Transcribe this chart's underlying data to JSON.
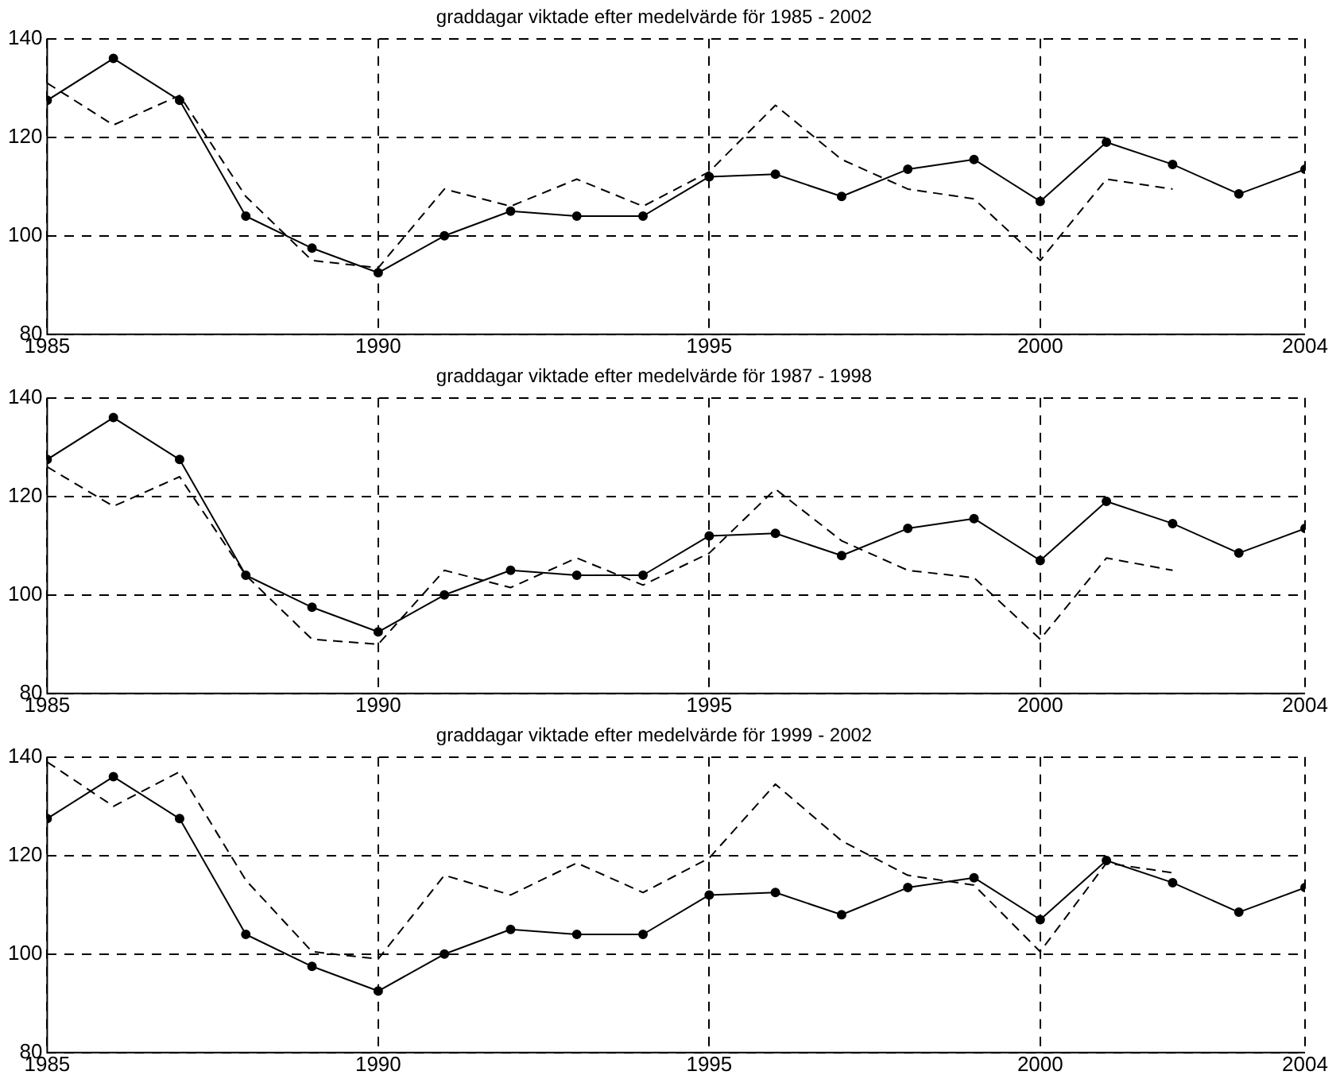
{
  "chart_data": [
    {
      "type": "line",
      "title": "graddagar viktade efter medelvärde för 1985 - 2002",
      "x": [
        1985,
        1986,
        1987,
        1988,
        1989,
        1990,
        1991,
        1992,
        1993,
        1994,
        1995,
        1996,
        1997,
        1998,
        1999,
        2000,
        2001,
        2002,
        2003,
        2004
      ],
      "series": [
        {
          "color": "#000000",
          "marker": "circle",
          "line_style": "solid",
          "values": [
            127.5,
            136,
            127.5,
            104,
            97.5,
            92.5,
            100,
            105,
            104,
            104,
            112,
            112.5,
            108,
            113.5,
            115.5,
            107,
            119,
            114.5,
            108.5,
            113.5
          ]
        },
        {
          "color": "#000000",
          "marker": "none",
          "line_style": "dashed",
          "x": [
            1985,
            1986,
            1987,
            1988,
            1989,
            1990,
            1991,
            1992,
            1993,
            1994,
            1995,
            1996,
            1997,
            1998,
            1999,
            2000,
            2001,
            2002
          ],
          "values": [
            131,
            122.5,
            128.5,
            108,
            95,
            93.5,
            109.5,
            106,
            111.5,
            106,
            113,
            126.5,
            115.5,
            109.5,
            107.5,
            95,
            111.5,
            109.5
          ]
        }
      ],
      "xlim": [
        1985,
        2004
      ],
      "xticks": [
        1985,
        1990,
        1995,
        2000,
        2004
      ],
      "ylim": [
        80,
        140
      ],
      "yticks": [
        80,
        100,
        120,
        140
      ],
      "grid": true
    },
    {
      "type": "line",
      "title": "graddagar viktade efter medelvärde för 1987 - 1998",
      "x": [
        1985,
        1986,
        1987,
        1988,
        1989,
        1990,
        1991,
        1992,
        1993,
        1994,
        1995,
        1996,
        1997,
        1998,
        1999,
        2000,
        2001,
        2002,
        2003,
        2004
      ],
      "series": [
        {
          "color": "#000000",
          "marker": "circle",
          "line_style": "solid",
          "values": [
            127.5,
            136,
            127.5,
            104,
            97.5,
            92.5,
            100,
            105,
            104,
            104,
            112,
            112.5,
            108,
            113.5,
            115.5,
            107,
            119,
            114.5,
            108.5,
            113.5
          ]
        },
        {
          "color": "#000000",
          "marker": "none",
          "line_style": "dashed",
          "x": [
            1985,
            1986,
            1987,
            1988,
            1989,
            1990,
            1991,
            1992,
            1993,
            1994,
            1995,
            1996,
            1997,
            1998,
            1999,
            2000,
            2001,
            2002
          ],
          "values": [
            126,
            118,
            124,
            104,
            91,
            90,
            105,
            101.5,
            107.5,
            102,
            108.5,
            121.5,
            111,
            105,
            103.5,
            91,
            107.5,
            105
          ]
        }
      ],
      "xlim": [
        1985,
        2004
      ],
      "xticks": [
        1985,
        1990,
        1995,
        2000,
        2004
      ],
      "ylim": [
        80,
        140
      ],
      "yticks": [
        80,
        100,
        120,
        140
      ],
      "grid": true
    },
    {
      "type": "line",
      "title": "graddagar viktade efter medelvärde för 1999 - 2002",
      "x": [
        1985,
        1986,
        1987,
        1988,
        1989,
        1990,
        1991,
        1992,
        1993,
        1994,
        1995,
        1996,
        1997,
        1998,
        1999,
        2000,
        2001,
        2002,
        2003,
        2004
      ],
      "series": [
        {
          "color": "#000000",
          "marker": "circle",
          "line_style": "solid",
          "values": [
            127.5,
            136,
            127.5,
            104,
            97.5,
            92.5,
            100,
            105,
            104,
            104,
            112,
            112.5,
            108,
            113.5,
            115.5,
            107,
            119,
            114.5,
            108.5,
            113.5
          ]
        },
        {
          "color": "#000000",
          "marker": "none",
          "line_style": "dashed",
          "x": [
            1985,
            1986,
            1987,
            1988,
            1989,
            1990,
            1991,
            1992,
            1993,
            1994,
            1995,
            1996,
            1997,
            1998,
            1999,
            2000,
            2001,
            2002
          ],
          "values": [
            139,
            130,
            137,
            115,
            100.5,
            99,
            116,
            112,
            118.5,
            112.5,
            119.5,
            134.5,
            123,
            116,
            114,
            100.5,
            118.5,
            116.5
          ]
        }
      ],
      "xlim": [
        1985,
        2004
      ],
      "xticks": [
        1985,
        1990,
        1995,
        2000,
        2004
      ],
      "ylim": [
        80,
        140
      ],
      "yticks": [
        80,
        100,
        120,
        140
      ],
      "grid": true
    }
  ]
}
